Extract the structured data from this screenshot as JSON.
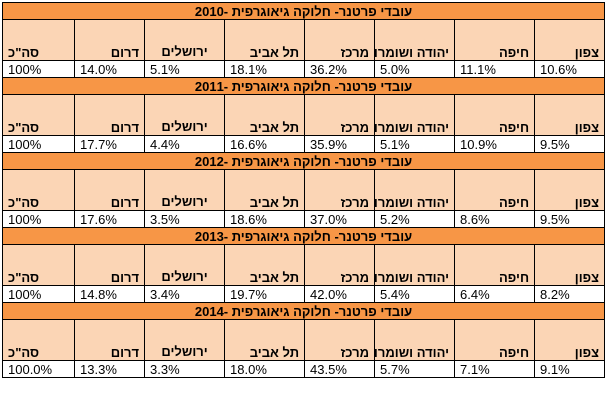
{
  "headers": [
    "צפון",
    "חיפה",
    "יהודה ושומרון",
    "מרכז",
    "תל אביב",
    "ירושלים",
    "דרום",
    "סה\"כ"
  ],
  "blocks": [
    {
      "title": "עובדי פרטנר- חלוקה גיאוגרפית -2010",
      "values": [
        "10.6%",
        "11.1%",
        "5.0%",
        "36.2%",
        "18.1%",
        "5.1%",
        "14.0%",
        "100%"
      ]
    },
    {
      "title": "עובדי פרטנר- חלוקה גיאוגרפית -2011",
      "values": [
        "9.5%",
        "10.9%",
        "5.1%",
        "35.9%",
        "16.6%",
        "4.4%",
        "17.7%",
        "100%"
      ]
    },
    {
      "title": "עובדי פרטנר- חלוקה גיאוגרפית -2012",
      "values": [
        "9.5%",
        "8.6%",
        "5.2%",
        "37.0%",
        "18.6%",
        "3.5%",
        "17.6%",
        "100%"
      ]
    },
    {
      "title": "עובדי פרטנר- חלוקה גיאוגרפית -2013",
      "values": [
        "8.2%",
        "6.4%",
        "5.4%",
        "42.0%",
        "19.7%",
        "3.4%",
        "14.8%",
        "100%"
      ]
    },
    {
      "title": "עובדי פרטנר- חלוקה גיאוגרפית -2014",
      "values": [
        "9.1%",
        "7.1%",
        "5.7%",
        "43.5%",
        "18.0%",
        "3.3%",
        "13.3%",
        "100.0%"
      ]
    }
  ],
  "colors": {
    "title_fill": "#f79646",
    "header_fill": "#fbd5b5",
    "value_fill": "#ffffff",
    "border": "#000000"
  }
}
